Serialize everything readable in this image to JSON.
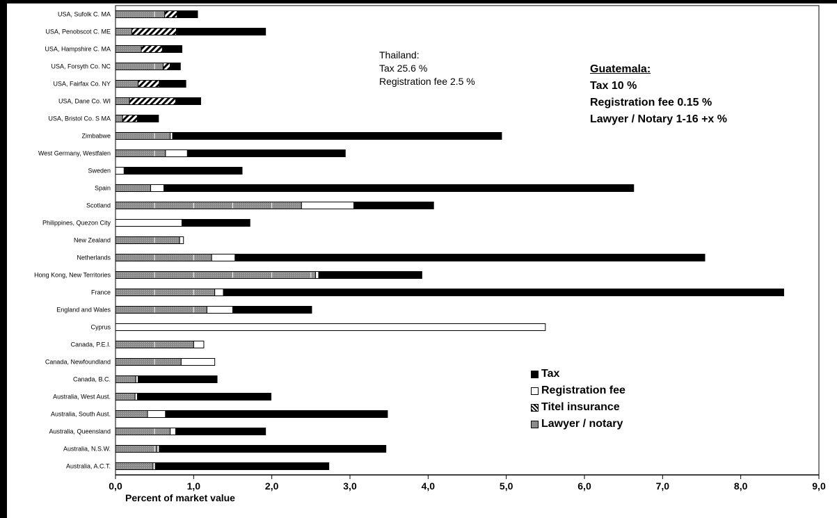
{
  "chart_data": {
    "type": "bar",
    "orientation": "horizontal",
    "stacked": true,
    "xlabel": "Percent of market value",
    "xlim": [
      0,
      9
    ],
    "xticks": [
      "0,0",
      "1,0",
      "2,0",
      "3,0",
      "4,0",
      "5,0",
      "6,0",
      "7,0",
      "8,0",
      "9,0"
    ],
    "grid": false,
    "legend_position": "bottom-right",
    "categories": [
      "USA, Sufolk C. MA",
      "USA, Penobscot C. ME",
      "USA, Hampshire C. MA",
      "USA, Forsyth Co. NC",
      "USA, Fairfax Co. NY",
      "USA, Dane Co. WI",
      "USA, Bristol Co. S MA",
      "Zimbabwe",
      "West Germany, Westfalen",
      "Sweden",
      "Spain",
      "Scotland",
      "Philippines, Quezon City",
      "New Zealand",
      "Netherlands",
      "Hong Kong, New Territories",
      "France",
      "England and Wales",
      "Cyprus",
      "Canada, P.E.I.",
      "Canada, Newfoundland",
      "Canada, B.C.",
      "Australia, West Aust.",
      "Australia, South Aust.",
      "Australia, Queensland",
      "Australia, N.S.W.",
      "Australia, A.C.T."
    ],
    "series": [
      {
        "name": "Lawyer / notary",
        "color": "#8c8c8c",
        "values": [
          0.63,
          0.21,
          0.33,
          0.61,
          0.29,
          0.18,
          0.09,
          0.7,
          0.64,
          0,
          0.45,
          2.38,
          0,
          0.82,
          1.23,
          2.56,
          1.27,
          1.17,
          0,
          1.0,
          0.84,
          0.26,
          0.25,
          0.41,
          0.7,
          0.53,
          0.48
        ]
      },
      {
        "name": "Titel insurance",
        "color": "#ffffff",
        "values": [
          0.16,
          0.57,
          0.27,
          0.09,
          0.27,
          0.59,
          0.19,
          0,
          0,
          0,
          0,
          0,
          0,
          0,
          0,
          0,
          0,
          0,
          0,
          0,
          0,
          0,
          0,
          0,
          0,
          0,
          0
        ]
      },
      {
        "name": "Registration fee",
        "color": "#ffffff",
        "values": [
          0,
          0,
          0,
          0,
          0,
          0,
          0,
          0.03,
          0.28,
          0.11,
          0.17,
          0.67,
          0.85,
          0.05,
          0.3,
          0.04,
          0.11,
          0.33,
          5.5,
          0.13,
          0.43,
          0.03,
          0.03,
          0.23,
          0.07,
          0.03,
          0.03
        ]
      },
      {
        "name": "Tax",
        "color": "#000000",
        "values": [
          0.26,
          1.14,
          0.25,
          0.13,
          0.34,
          0.32,
          0.27,
          4.21,
          2.02,
          1.51,
          6.01,
          1.02,
          0.87,
          0,
          6.01,
          1.32,
          7.17,
          1.01,
          0,
          0,
          0,
          1.01,
          1.71,
          2.84,
          1.15,
          2.9,
          2.22
        ]
      }
    ],
    "annotations": {
      "thailand": [
        "Thailand:",
        "Tax 25.6 %",
        "Registration fee 2.5 %"
      ],
      "guatemala_title": "Guatemala:",
      "guatemala_lines": [
        "Tax 10 %",
        "Registration fee 0.15 %",
        "Lawyer / Notary 1-16 +x %"
      ]
    },
    "legend": [
      "Tax",
      "Registration fee",
      "Titel insurance",
      "Lawyer / notary"
    ]
  }
}
